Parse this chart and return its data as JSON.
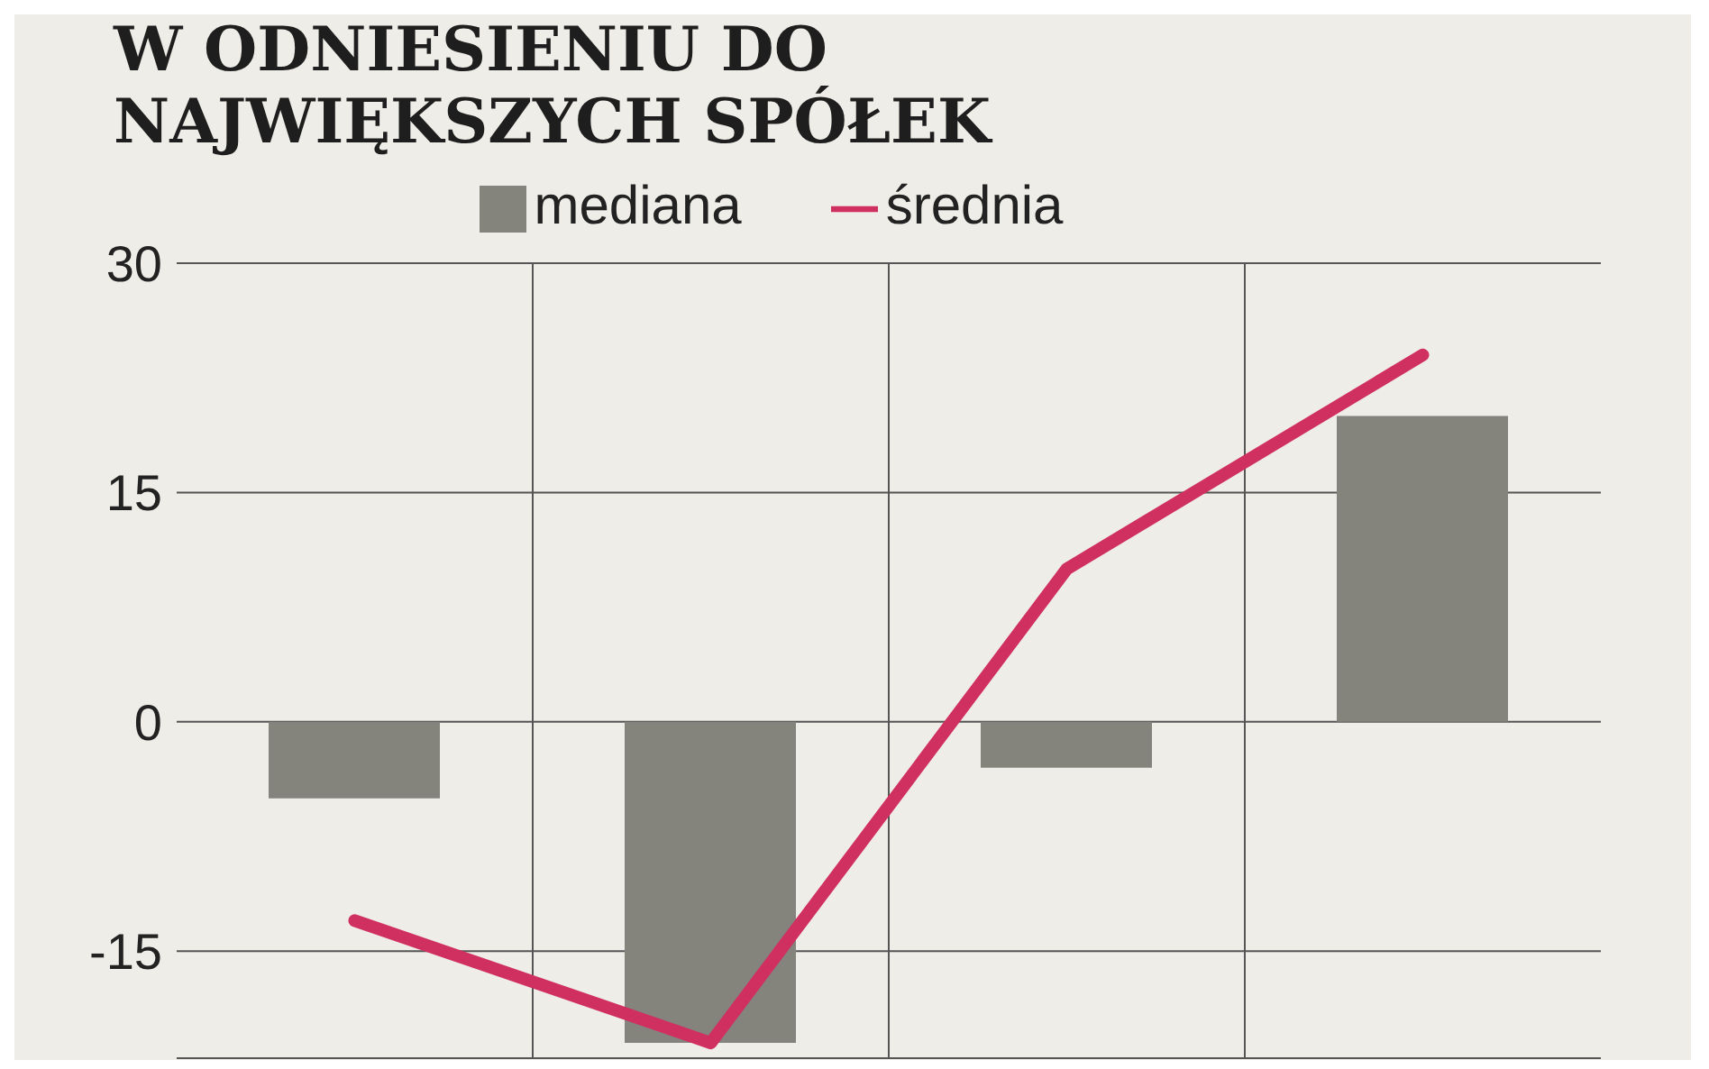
{
  "chart_data": {
    "type": "bar",
    "title": "W ODNIESIENIU DO NAJWIĘKSZYCH SPÓŁEK",
    "categories": [
      null,
      null,
      null,
      null
    ],
    "series": [
      {
        "name": "mediana",
        "color": "#84847c",
        "values": [
          -5,
          -21,
          -3,
          20
        ]
      },
      {
        "name": "średnia",
        "type": "line",
        "color": "#d0305f",
        "values": [
          -13,
          -21,
          10,
          24
        ]
      }
    ],
    "ylim": [
      -22,
      30
    ],
    "yticks": [
      -15,
      0,
      15,
      30
    ],
    "grid": true,
    "legend": "top",
    "tick_labels": "y",
    "marker": "none",
    "line_style": "solid"
  }
}
